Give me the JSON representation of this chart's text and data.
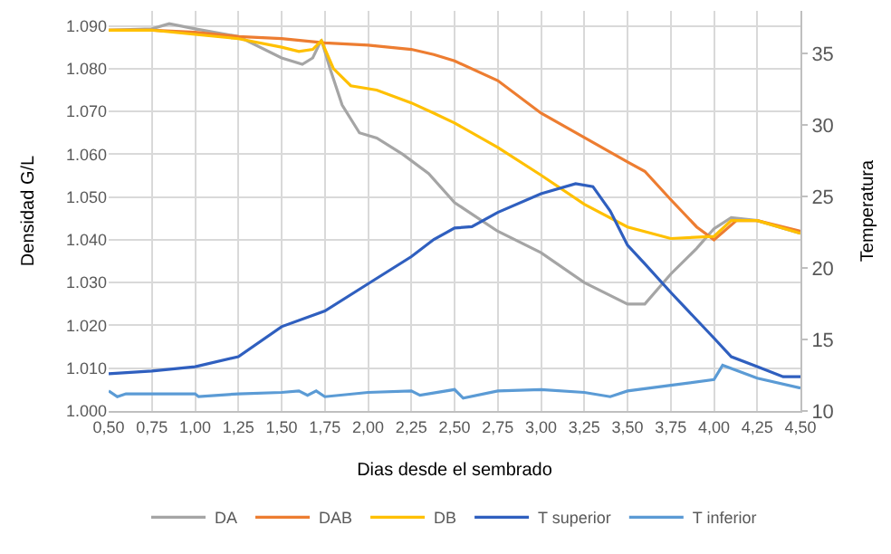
{
  "chart_data": {
    "type": "line",
    "xlabel": "Dias desde el sembrado",
    "ylabel": "Densidad G/L",
    "y2label": "Temperatura",
    "xlim": [
      0.5,
      4.5
    ],
    "xticks": [
      {
        "value": 0.5,
        "label": "0,50"
      },
      {
        "value": 0.75,
        "label": "0,75"
      },
      {
        "value": 1.0,
        "label": "1,00"
      },
      {
        "value": 1.25,
        "label": "1,25"
      },
      {
        "value": 1.5,
        "label": "1,50"
      },
      {
        "value": 1.75,
        "label": "1,75"
      },
      {
        "value": 2.0,
        "label": "2,00"
      },
      {
        "value": 2.25,
        "label": "2,25"
      },
      {
        "value": 2.5,
        "label": "2,50"
      },
      {
        "value": 2.75,
        "label": "2,75"
      },
      {
        "value": 3.0,
        "label": "3,00"
      },
      {
        "value": 3.25,
        "label": "3,25"
      },
      {
        "value": 3.5,
        "label": "3,50"
      },
      {
        "value": 3.75,
        "label": "3,75"
      },
      {
        "value": 4.0,
        "label": "4,00"
      },
      {
        "value": 4.25,
        "label": "4,25"
      },
      {
        "value": 4.5,
        "label": "4,50"
      }
    ],
    "ylim": [
      1000,
      1093.5
    ],
    "yticks": [
      {
        "value": 1000,
        "label": "1.000"
      },
      {
        "value": 1010,
        "label": "1.010"
      },
      {
        "value": 1020,
        "label": "1.020"
      },
      {
        "value": 1030,
        "label": "1.030"
      },
      {
        "value": 1040,
        "label": "1.040"
      },
      {
        "value": 1050,
        "label": "1.050"
      },
      {
        "value": 1060,
        "label": "1.060"
      },
      {
        "value": 1070,
        "label": "1.070"
      },
      {
        "value": 1080,
        "label": "1.080"
      },
      {
        "value": 1090,
        "label": "1.090"
      }
    ],
    "y2lim": [
      10,
      38
    ],
    "y2ticks": [
      10,
      15,
      20,
      25,
      30,
      35
    ],
    "grid": true,
    "legend": "bottom",
    "marker": "none",
    "line_style": "solid",
    "series": [
      {
        "name": "DA",
        "color": "#a5a5a5",
        "x": [
          0.5,
          0.75,
          0.85,
          1.0,
          1.25,
          1.5,
          1.62,
          1.68,
          1.73,
          1.78,
          1.85,
          1.95,
          2.05,
          2.2,
          2.35,
          2.5,
          2.75,
          3.0,
          3.25,
          3.5,
          3.6,
          3.75,
          3.9,
          4.0,
          4.1,
          4.25,
          4.5
        ],
        "values": [
          1089,
          1089.3,
          1090.5,
          1089.3,
          1087.5,
          1082.5,
          1081,
          1082.5,
          1086.7,
          1080,
          1071.5,
          1065,
          1063.8,
          1060,
          1055.5,
          1048.7,
          1042,
          1037,
          1030,
          1025,
          1025,
          1032,
          1038,
          1042.6,
          1045.2,
          1044.5,
          1041.5
        ]
      },
      {
        "name": "DAB",
        "color": "#ed7d31",
        "x": [
          0.5,
          0.75,
          1.0,
          1.25,
          1.5,
          1.75,
          2.0,
          2.25,
          2.38,
          2.5,
          2.75,
          3.0,
          3.25,
          3.5,
          3.6,
          3.75,
          3.9,
          4.0,
          4.13,
          4.25,
          4.5
        ],
        "values": [
          1089,
          1089,
          1088.5,
          1087.5,
          1087,
          1086,
          1085.5,
          1084.5,
          1083.3,
          1081.8,
          1077.2,
          1069.6,
          1063.9,
          1058.2,
          1056,
          1049.4,
          1043,
          1040,
          1044.5,
          1044.5,
          1042
        ]
      },
      {
        "name": "DB",
        "color": "#ffc000",
        "x": [
          0.5,
          0.75,
          1.0,
          1.25,
          1.5,
          1.6,
          1.68,
          1.73,
          1.8,
          1.9,
          2.05,
          2.25,
          2.38,
          2.5,
          2.75,
          3.0,
          3.25,
          3.5,
          3.75,
          4.0,
          4.1,
          4.25,
          4.5
        ],
        "values": [
          1089,
          1089,
          1088,
          1087,
          1085,
          1084,
          1084.5,
          1086.5,
          1080,
          1076,
          1075,
          1072,
          1069.6,
          1067.3,
          1061.6,
          1055.1,
          1048.3,
          1043,
          1040.3,
          1040.8,
          1044.5,
          1044.5,
          1041.5
        ]
      },
      {
        "name": "T superior",
        "color": "#2f5fbf",
        "axis": "y2",
        "x": [
          0.5,
          0.75,
          1.0,
          1.25,
          1.5,
          1.75,
          2.0,
          2.25,
          2.38,
          2.5,
          2.6,
          2.75,
          3.0,
          3.2,
          3.3,
          3.4,
          3.5,
          3.6,
          3.75,
          4.0,
          4.1,
          4.25,
          4.4,
          4.5
        ],
        "values": [
          12.6,
          12.8,
          13.1,
          13.8,
          15.9,
          17.0,
          18.9,
          20.8,
          22.0,
          22.8,
          22.9,
          23.9,
          25.2,
          25.9,
          25.7,
          24.0,
          21.6,
          20.3,
          18.3,
          15.1,
          13.8,
          13.1,
          12.4,
          12.4
        ]
      },
      {
        "name": "T inferior",
        "color": "#5b9bd5",
        "axis": "y2",
        "x": [
          0.5,
          0.55,
          0.6,
          1.0,
          1.02,
          1.25,
          1.5,
          1.6,
          1.65,
          1.7,
          1.75,
          2.0,
          2.25,
          2.3,
          2.5,
          2.55,
          2.75,
          3.0,
          3.25,
          3.4,
          3.5,
          3.75,
          4.0,
          4.05,
          4.25,
          4.5
        ],
        "values": [
          11.4,
          11.0,
          11.2,
          11.2,
          11.0,
          11.2,
          11.3,
          11.4,
          11.1,
          11.4,
          11.0,
          11.3,
          11.4,
          11.1,
          11.5,
          10.9,
          11.4,
          11.5,
          11.3,
          11.0,
          11.4,
          11.8,
          12.2,
          13.2,
          12.3,
          11.6
        ]
      }
    ]
  }
}
